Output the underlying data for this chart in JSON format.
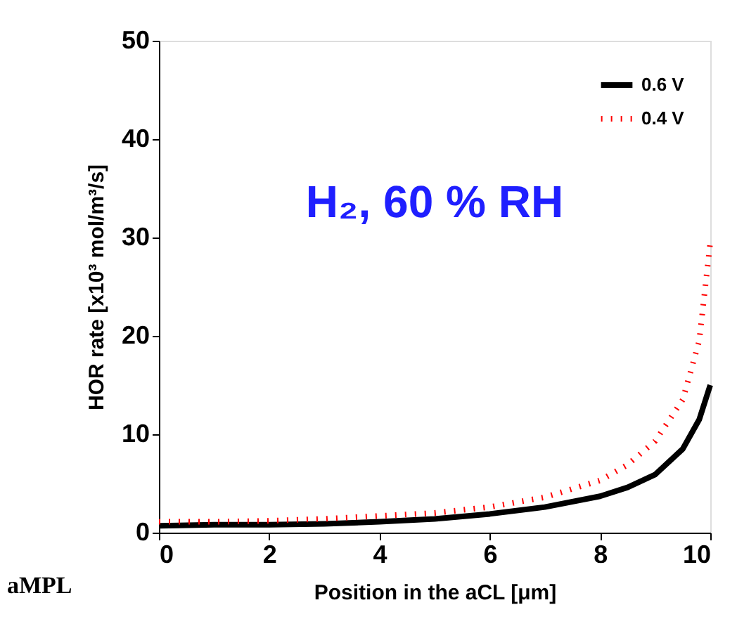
{
  "chart_data": {
    "type": "line",
    "xlabel": "Position in the aCL [μm]",
    "ylabel": "HOR rate [x10³ mol/m³/s]",
    "xlim": [
      0,
      10
    ],
    "xticks": [
      0,
      2,
      4,
      6,
      8,
      10
    ],
    "ylim": [
      0,
      50
    ],
    "yticks": [
      0,
      10,
      20,
      30,
      40,
      50
    ],
    "grid": false,
    "legend": "top right",
    "marker": "none",
    "annotations": [
      "H₂, 60 % RH",
      "aMPL"
    ],
    "series": [
      {
        "name": "0.6 V",
        "color": "#000000",
        "line_style": "solid",
        "x": [
          0,
          1,
          2,
          3,
          4,
          5,
          6,
          7,
          8,
          8.5,
          9,
          9.5,
          9.8,
          10
        ],
        "values": [
          0.7,
          0.8,
          0.8,
          0.9,
          1.1,
          1.4,
          1.9,
          2.6,
          3.7,
          4.6,
          5.9,
          8.5,
          11.5,
          15
        ]
      },
      {
        "name": "0.4 V",
        "color": "#ff0000",
        "line_style": "dotted",
        "x": [
          0,
          1,
          2,
          3,
          4,
          5,
          6,
          7,
          8,
          8.5,
          9,
          9.5,
          9.8,
          10
        ],
        "values": [
          1.1,
          1.1,
          1.2,
          1.4,
          1.7,
          2.0,
          2.6,
          3.6,
          5.3,
          6.9,
          9.3,
          13.5,
          19.5,
          29.5
        ]
      }
    ]
  }
}
